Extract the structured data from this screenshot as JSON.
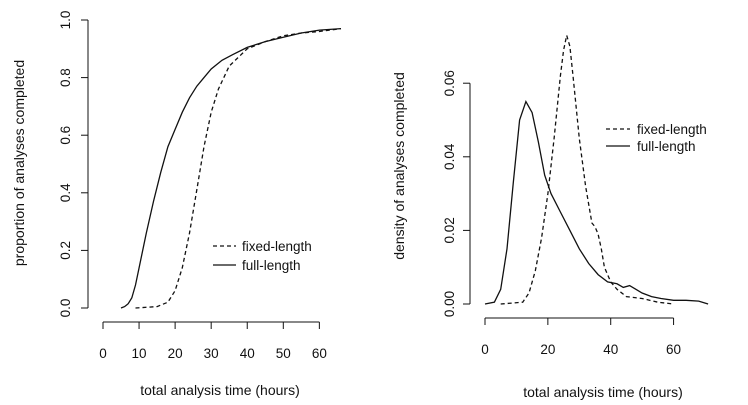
{
  "chart_data": [
    {
      "type": "line",
      "title": "",
      "xlabel": "total analysis time (hours)",
      "ylabel": "proportion of analyses completed",
      "xlim": [
        0,
        66
      ],
      "ylim": [
        0,
        1
      ],
      "xticks": [
        0,
        10,
        20,
        30,
        40,
        50,
        60
      ],
      "yticks": [
        0.0,
        0.2,
        0.4,
        0.6,
        0.8,
        1.0
      ],
      "ytick_labels": [
        "0.0",
        "0.2",
        "0.4",
        "0.6",
        "0.8",
        "1.0"
      ],
      "legend_position": "right-middle",
      "series": [
        {
          "name": "fixed-length",
          "style": "dashed",
          "x": [
            9,
            15,
            18,
            20,
            22,
            24,
            26,
            28,
            30,
            32,
            35,
            40,
            45,
            50,
            55,
            60,
            66
          ],
          "y": [
            0.0,
            0.005,
            0.02,
            0.06,
            0.14,
            0.26,
            0.41,
            0.56,
            0.68,
            0.76,
            0.84,
            0.9,
            0.925,
            0.945,
            0.955,
            0.96,
            0.97
          ]
        },
        {
          "name": "full-length",
          "style": "solid",
          "x": [
            5,
            6,
            7,
            8,
            9,
            10,
            12,
            14,
            16,
            18,
            20,
            22,
            24,
            26,
            28,
            30,
            33,
            36,
            40,
            45,
            50,
            55,
            60,
            66
          ],
          "y": [
            0.0,
            0.005,
            0.015,
            0.035,
            0.08,
            0.14,
            0.26,
            0.37,
            0.47,
            0.56,
            0.62,
            0.68,
            0.73,
            0.77,
            0.8,
            0.83,
            0.86,
            0.88,
            0.905,
            0.925,
            0.94,
            0.955,
            0.965,
            0.97
          ]
        }
      ]
    },
    {
      "type": "line",
      "title": "",
      "xlabel": "total analysis time (hours)",
      "ylabel": "density of analyses completed",
      "xlim": [
        0,
        70
      ],
      "ylim": [
        0,
        0.075
      ],
      "xticks": [
        0,
        20,
        40,
        60
      ],
      "yticks": [
        0.0,
        0.02,
        0.04,
        0.06
      ],
      "ytick_labels": [
        "0.00",
        "0.02",
        "0.04",
        "0.06"
      ],
      "legend_position": "top-right",
      "series": [
        {
          "name": "fixed-length",
          "style": "dashed",
          "x": [
            5,
            12,
            14,
            16,
            18,
            20,
            22,
            24,
            25,
            26,
            27,
            28,
            30,
            32,
            34,
            35,
            36,
            37,
            38,
            40,
            42,
            45,
            50,
            55,
            60
          ],
          "y": [
            0.0,
            0.0005,
            0.003,
            0.009,
            0.018,
            0.03,
            0.045,
            0.062,
            0.069,
            0.073,
            0.07,
            0.062,
            0.045,
            0.032,
            0.022,
            0.021,
            0.019,
            0.015,
            0.01,
            0.006,
            0.004,
            0.002,
            0.0015,
            0.0005,
            0.0
          ]
        },
        {
          "name": "full-length",
          "style": "solid",
          "x": [
            0,
            3,
            5,
            7,
            9,
            11,
            13,
            15,
            17,
            19,
            21,
            24,
            27,
            30,
            33,
            36,
            39,
            42,
            44,
            46,
            48,
            50,
            53,
            56,
            60,
            64,
            68,
            71
          ],
          "y": [
            0.0,
            0.0005,
            0.004,
            0.015,
            0.033,
            0.05,
            0.055,
            0.052,
            0.044,
            0.035,
            0.03,
            0.025,
            0.02,
            0.015,
            0.011,
            0.008,
            0.006,
            0.0055,
            0.0045,
            0.005,
            0.004,
            0.003,
            0.002,
            0.0015,
            0.001,
            0.001,
            0.0008,
            0.0
          ]
        }
      ]
    }
  ]
}
